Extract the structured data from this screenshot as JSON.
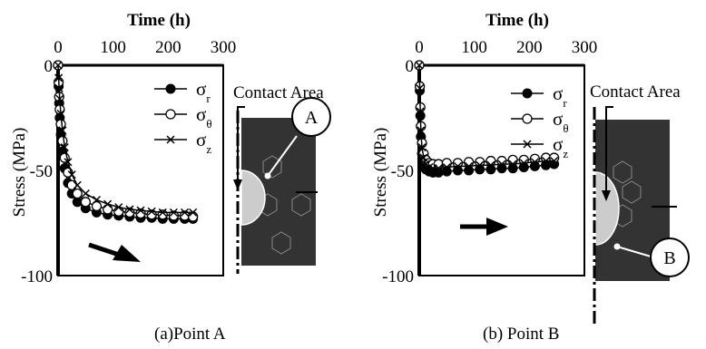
{
  "chart_data": [
    {
      "type": "scatter",
      "caption": "(a)Point A",
      "xlabel": "Time (h)",
      "ylabel": "Stress (MPa)",
      "xlim": [
        0,
        300
      ],
      "ylim": [
        -100,
        0
      ],
      "xticks": [
        "0",
        "100",
        "200",
        "300"
      ],
      "yticks": [
        "0",
        "-50",
        "-100"
      ],
      "legend_position": "top-right",
      "grid": false,
      "x": [
        0,
        1,
        2,
        3,
        5,
        8,
        12,
        18,
        25,
        35,
        50,
        70,
        90,
        110,
        130,
        150,
        170,
        190,
        210,
        230,
        245
      ],
      "series": [
        {
          "name": "σr",
          "marker": "filled-circle",
          "values": [
            0,
            -10,
            -18,
            -25,
            -33,
            -41,
            -49,
            -56,
            -61,
            -65,
            -68,
            -70,
            -71,
            -71.5,
            -72,
            -72.5,
            -72.5,
            -73,
            -73,
            -73,
            -73
          ]
        },
        {
          "name": "σθ",
          "marker": "open-circle",
          "values": [
            0,
            -8,
            -15,
            -21,
            -28,
            -36,
            -44,
            -51,
            -57,
            -61,
            -65,
            -67,
            -68.5,
            -69.5,
            -70,
            -70.5,
            -71,
            -71,
            -71.5,
            -71.5,
            -72
          ]
        },
        {
          "name": "σz",
          "marker": "cross",
          "values": [
            0,
            -6,
            -11,
            -16,
            -23,
            -31,
            -39,
            -46,
            -52,
            -57,
            -61,
            -64,
            -66,
            -67.5,
            -68.5,
            -69,
            -69.5,
            -70,
            -70,
            -70,
            -70
          ]
        }
      ],
      "inset": {
        "label": "Contact Area",
        "point": "A"
      }
    },
    {
      "type": "scatter",
      "caption": "(b) Point B",
      "xlabel": "Time (h)",
      "ylabel": "Stress (MPa)",
      "xlim": [
        0,
        300
      ],
      "ylim": [
        -100,
        0
      ],
      "xticks": [
        "0",
        "100",
        "200",
        "300"
      ],
      "yticks": [
        "0",
        "-50",
        "-100"
      ],
      "legend_position": "top-right",
      "grid": false,
      "x": [
        0,
        1,
        2,
        3,
        5,
        8,
        12,
        18,
        25,
        35,
        50,
        70,
        90,
        110,
        130,
        150,
        170,
        190,
        210,
        230,
        245
      ],
      "series": [
        {
          "name": "σr",
          "marker": "filled-circle",
          "values": [
            0,
            -12,
            -24,
            -34,
            -42,
            -47,
            -49.5,
            -50.5,
            -51,
            -51,
            -50.5,
            -50,
            -50,
            -49.5,
            -49.5,
            -49,
            -49,
            -48.5,
            -48,
            -47.5,
            -47
          ]
        },
        {
          "name": "σθ",
          "marker": "open-circle",
          "values": [
            0,
            -10,
            -20,
            -29,
            -37,
            -42,
            -45,
            -46.5,
            -47,
            -47,
            -46.5,
            -46.5,
            -46,
            -46,
            -45.5,
            -45.5,
            -45,
            -45,
            -44.5,
            -44,
            -44
          ]
        },
        {
          "name": "σz",
          "marker": "cross",
          "values": [
            0,
            -11,
            -22,
            -31,
            -39,
            -44,
            -47,
            -48.5,
            -49,
            -49,
            -48.5,
            -48,
            -48,
            -47.5,
            -47.5,
            -47,
            -47,
            -46.5,
            -46,
            -45.5,
            -45.5
          ]
        }
      ],
      "inset": {
        "label": "Contact Area",
        "point": "B"
      }
    }
  ]
}
